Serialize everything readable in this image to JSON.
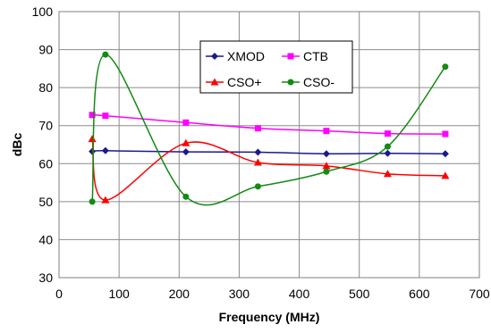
{
  "chart_data": {
    "type": "line",
    "xlabel": "Frequency (MHz)",
    "ylabel": "dBc",
    "xlim": [
      0,
      700
    ],
    "ylim": [
      30,
      100
    ],
    "xticks": [
      "0",
      "100",
      "200",
      "300",
      "400",
      "500",
      "600",
      "700"
    ],
    "yticks": [
      "30",
      "40",
      "50",
      "60",
      "70",
      "80",
      "90",
      "100"
    ],
    "grid": true,
    "legend_position": "top-center",
    "series": [
      {
        "name": "XMOD",
        "color": "#1a1a8c",
        "marker": "diamond",
        "x": [
          55.25,
          77.25,
          211.25,
          331.25,
          445.25,
          547.25,
          643.25
        ],
        "y": [
          63.2,
          63.4,
          63.1,
          63.0,
          62.6,
          62.7,
          62.6
        ]
      },
      {
        "name": "CTB",
        "color": "#ff00ff",
        "marker": "square",
        "x": [
          55.25,
          77.25,
          211.25,
          331.25,
          445.25,
          547.25,
          643.25
        ],
        "y": [
          72.8,
          72.6,
          70.8,
          69.3,
          68.6,
          67.9,
          67.8
        ]
      },
      {
        "name": "CSO+",
        "color": "#ff0000",
        "marker": "triangle",
        "x": [
          55.25,
          77.25,
          211.25,
          331.25,
          445.25,
          547.25,
          643.25
        ],
        "y": [
          66.5,
          50.4,
          65.4,
          60.3,
          59.4,
          57.3,
          56.8
        ]
      },
      {
        "name": "CSO-",
        "color": "#138a13",
        "marker": "circle",
        "x": [
          55.25,
          77.25,
          211.25,
          331.25,
          445.25,
          547.25,
          643.25
        ],
        "y": [
          50.0,
          88.7,
          51.3,
          54.0,
          57.9,
          64.5,
          85.5
        ]
      }
    ]
  }
}
